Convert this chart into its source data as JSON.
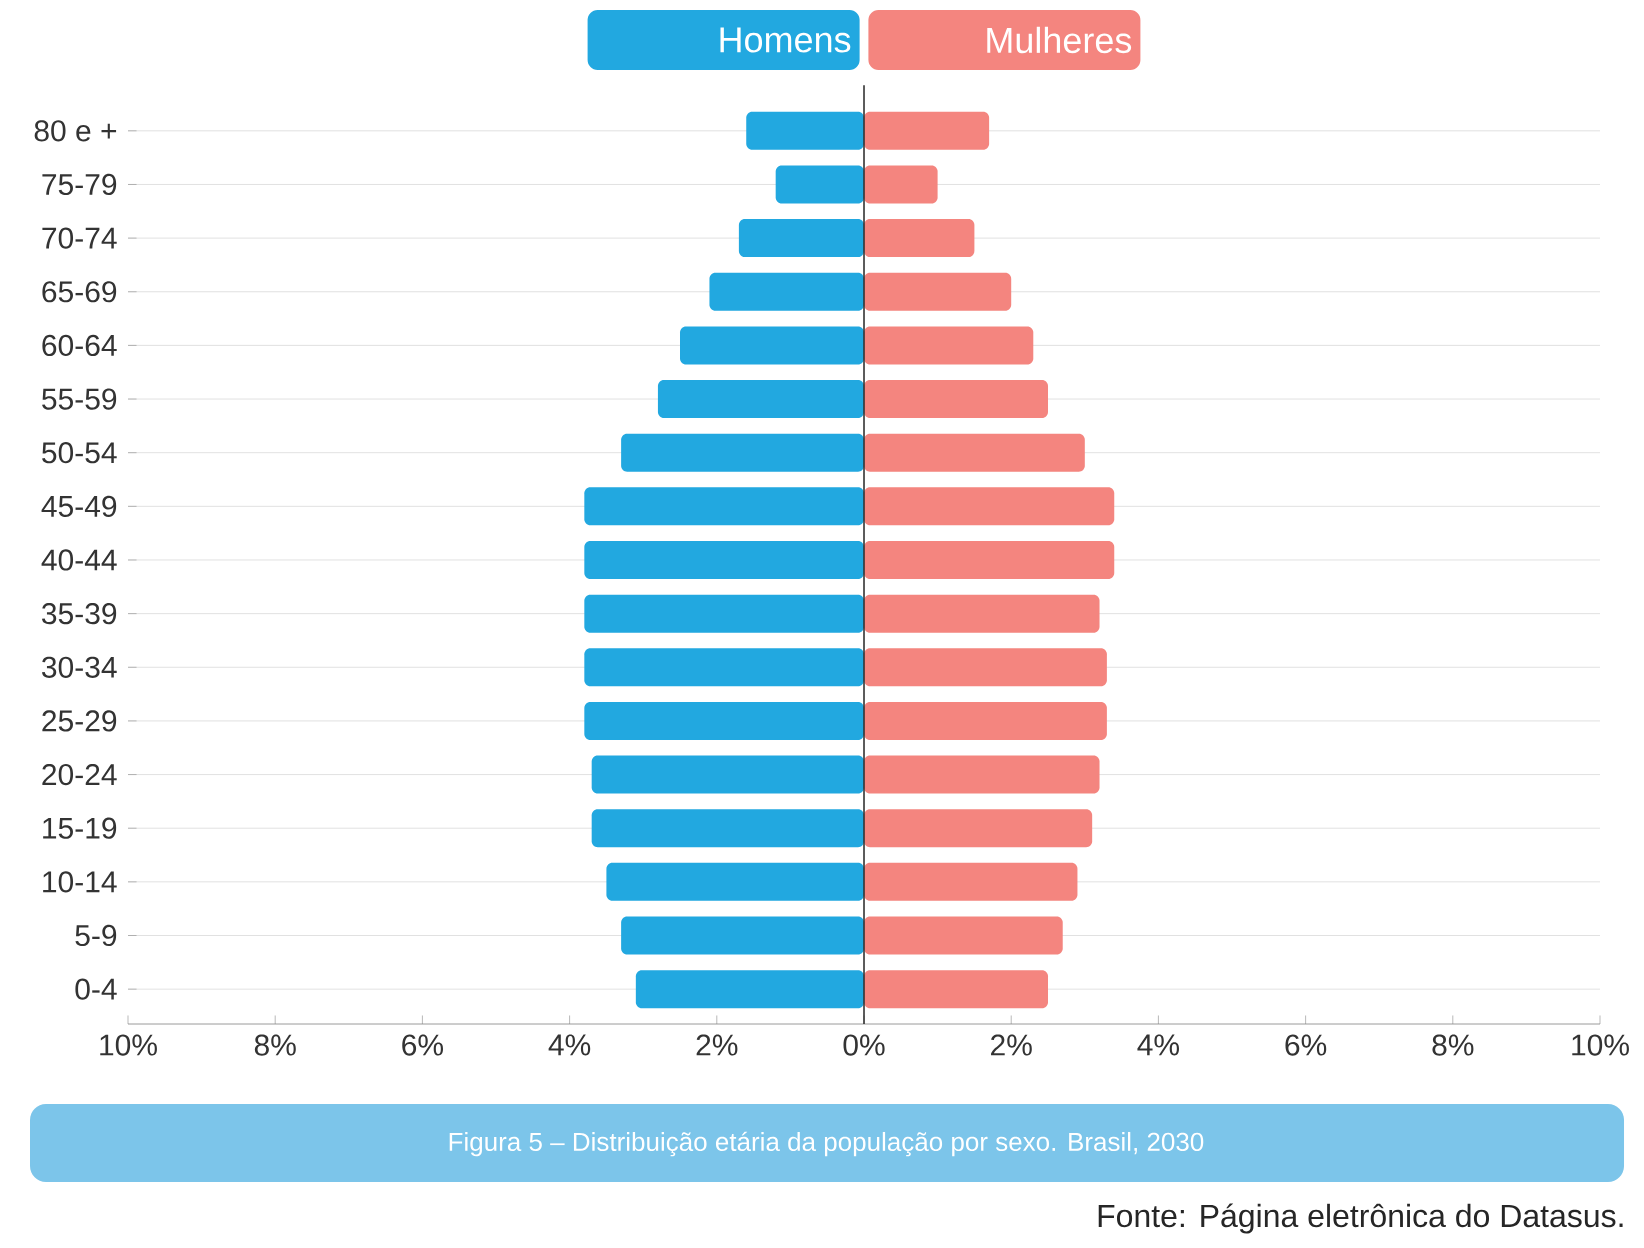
{
  "chart_data": {
    "type": "bar",
    "orientation": "horizontal",
    "title": "Figura 5 – Distribuição etária da população por sexo. Brasil, 2030",
    "annotations": [
      "Fonte: Página eletrônica do Datasus."
    ],
    "categories": [
      "80 e +",
      "75-79",
      "70-74",
      "65-69",
      "60-64",
      "55-59",
      "50-54",
      "45-49",
      "40-44",
      "35-39",
      "30-34",
      "25-29",
      "20-24",
      "15-19",
      "10-14",
      "5-9",
      "0-4"
    ],
    "series": [
      {
        "name": "Homens",
        "color": "#22a8e0",
        "values": [
          -1.6,
          -1.2,
          -1.7,
          -2.1,
          -2.5,
          -2.8,
          -3.3,
          -3.8,
          -3.8,
          -3.8,
          -3.8,
          -3.8,
          -3.7,
          -3.7,
          -3.5,
          -3.3,
          -3.1
        ]
      },
      {
        "name": "Mulheres",
        "color": "#f4857f",
        "values": [
          1.7,
          1.0,
          1.5,
          2.0,
          2.3,
          2.5,
          3.0,
          3.4,
          3.4,
          3.2,
          3.3,
          3.3,
          3.2,
          3.1,
          2.9,
          2.7,
          2.5
        ]
      }
    ],
    "xlim": [
      -10,
      10
    ],
    "xticks": [
      {
        "value": -10,
        "label": "10%"
      },
      {
        "value": -8,
        "label": "8%"
      },
      {
        "value": -6,
        "label": "6%"
      },
      {
        "value": -4,
        "label": "4%"
      },
      {
        "value": -2,
        "label": "2%"
      },
      {
        "value": 0,
        "label": "0%"
      },
      {
        "value": 2,
        "label": "2%"
      },
      {
        "value": 4,
        "label": "4%"
      },
      {
        "value": 6,
        "label": "6%"
      },
      {
        "value": 8,
        "label": "8%"
      },
      {
        "value": 10,
        "label": "10%"
      }
    ],
    "ref_lines": [
      {
        "axis": "x",
        "value": 0,
        "color": "#333333"
      }
    ],
    "grid": "y",
    "legend": "top",
    "stacked": true
  }
}
